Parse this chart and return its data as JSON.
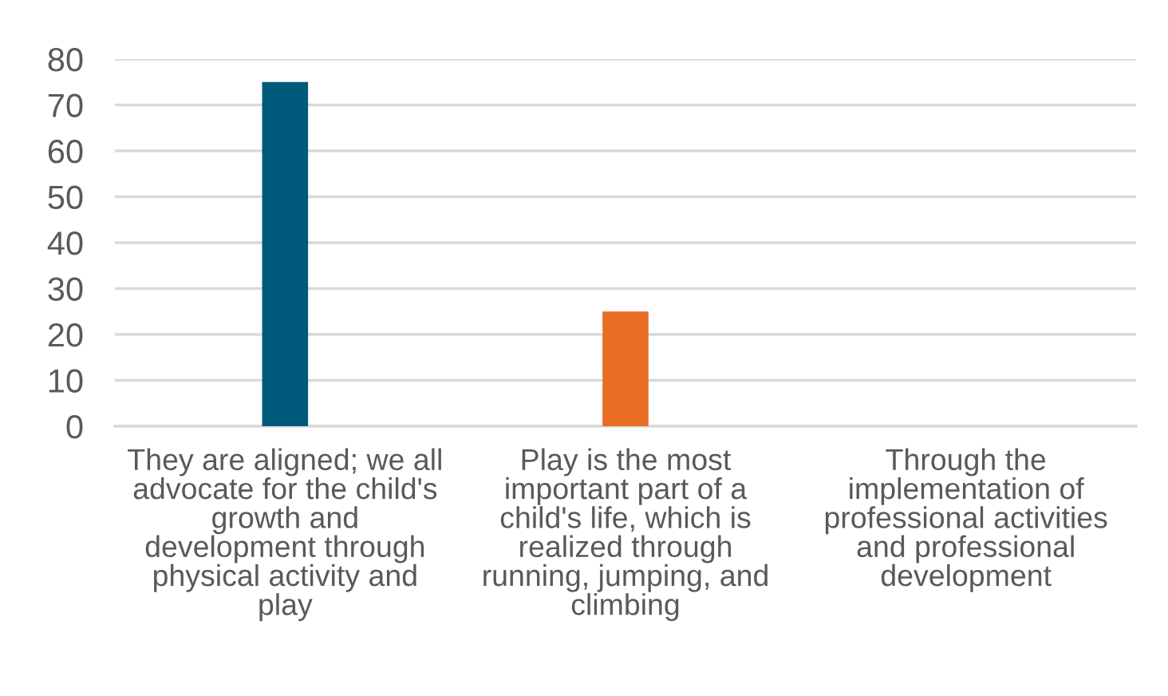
{
  "chart_data": {
    "type": "bar",
    "categories": [
      "They are aligned; we all advocate for the child's growth and development through physical activity and play",
      "Play is the most important part of a child's life, which is realized through running, jumping, and climbing",
      "Through the implementation of professional activities and professional development"
    ],
    "values": [
      75,
      25,
      0
    ],
    "colors": [
      "#005a7c",
      "#e96d25",
      "#a5a5a5"
    ],
    "ylim": [
      0,
      80
    ],
    "yticks": [
      0,
      10,
      20,
      30,
      40,
      50,
      60,
      70,
      80
    ],
    "grid": "y",
    "legend": false
  }
}
